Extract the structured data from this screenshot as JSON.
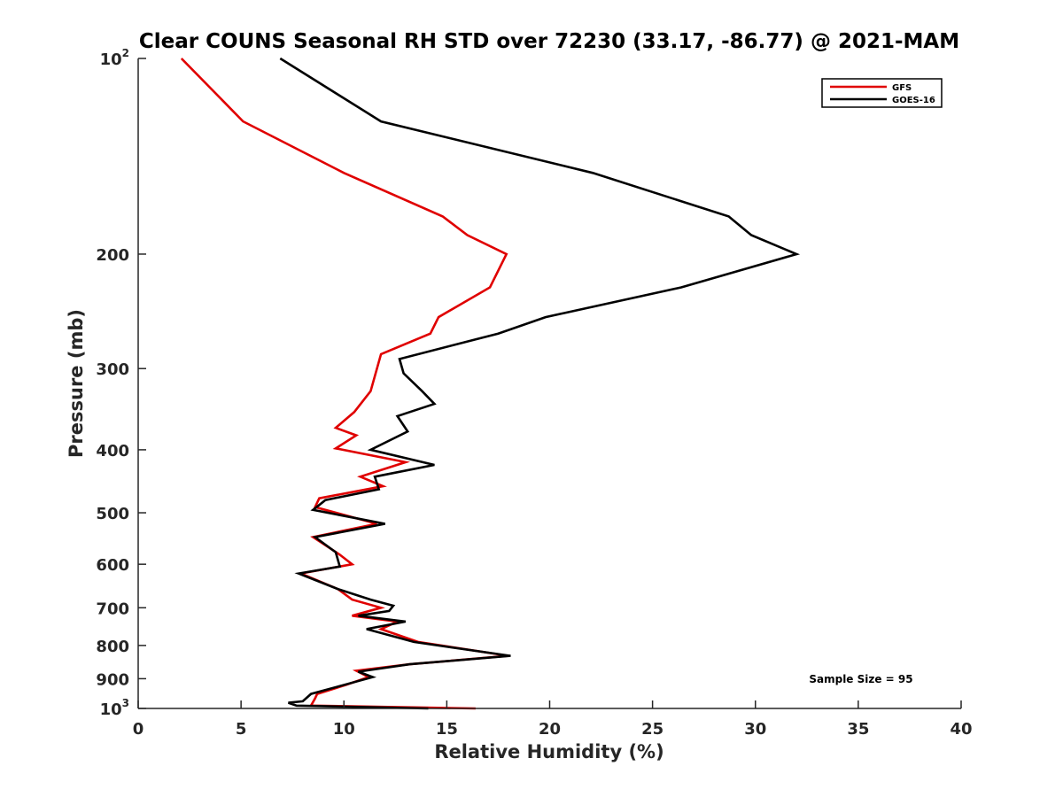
{
  "chart_data": {
    "type": "line",
    "title": "Clear COUNS Seasonal RH STD over 72230 (33.17, -86.77) @ 2021-MAM",
    "xlabel": "Relative Humidity (%)",
    "ylabel": "Pressure (mb)",
    "xlim": [
      0,
      40
    ],
    "ylim": [
      100,
      1000
    ],
    "y_scale": "log",
    "y_reversed": true,
    "x_ticks": [
      0,
      5,
      10,
      15,
      20,
      25,
      30,
      35,
      40
    ],
    "y_ticks": [
      {
        "value": 100,
        "label": "10",
        "sup": "2"
      },
      {
        "value": 200,
        "label": "200"
      },
      {
        "value": 300,
        "label": "300"
      },
      {
        "value": 400,
        "label": "400"
      },
      {
        "value": 500,
        "label": "500"
      },
      {
        "value": 600,
        "label": "600"
      },
      {
        "value": 700,
        "label": "700"
      },
      {
        "value": 800,
        "label": "800"
      },
      {
        "value": 900,
        "label": "900"
      },
      {
        "value": 1000,
        "label": "10",
        "sup": "3"
      }
    ],
    "grid": false,
    "legend_position": "top-right",
    "annotation": "Sample Size = 95",
    "series": [
      {
        "name": "GFS",
        "color": "#e00000",
        "points": [
          [
            2.1,
            100
          ],
          [
            5.1,
            125
          ],
          [
            10.0,
            150
          ],
          [
            14.8,
            175
          ],
          [
            16.0,
            187
          ],
          [
            17.9,
            200
          ],
          [
            17.1,
            225
          ],
          [
            14.6,
            250
          ],
          [
            14.2,
            265
          ],
          [
            11.8,
            285
          ],
          [
            11.3,
            325
          ],
          [
            10.5,
            350
          ],
          [
            9.6,
            370
          ],
          [
            10.6,
            380
          ],
          [
            9.6,
            398
          ],
          [
            13.0,
            418
          ],
          [
            10.8,
            440
          ],
          [
            11.9,
            455
          ],
          [
            8.8,
            475
          ],
          [
            8.6,
            490
          ],
          [
            11.6,
            520
          ],
          [
            8.5,
            545
          ],
          [
            9.8,
            580
          ],
          [
            10.4,
            600
          ],
          [
            7.9,
            620
          ],
          [
            9.7,
            655
          ],
          [
            10.4,
            680
          ],
          [
            11.8,
            700
          ],
          [
            10.4,
            720
          ],
          [
            12.6,
            735
          ],
          [
            11.8,
            755
          ],
          [
            13.6,
            790
          ],
          [
            18.0,
            830
          ],
          [
            13.2,
            855
          ],
          [
            10.6,
            875
          ],
          [
            11.2,
            895
          ],
          [
            10.1,
            920
          ],
          [
            8.7,
            950
          ],
          [
            8.6,
            965
          ],
          [
            8.4,
            990
          ],
          [
            16.4,
            1000
          ]
        ]
      },
      {
        "name": "GOES-16",
        "color": "#000000",
        "points": [
          [
            6.9,
            100
          ],
          [
            11.8,
            125
          ],
          [
            22.1,
            150
          ],
          [
            28.7,
            175
          ],
          [
            29.8,
            187
          ],
          [
            32.0,
            200
          ],
          [
            26.4,
            225
          ],
          [
            19.8,
            250
          ],
          [
            17.5,
            265
          ],
          [
            12.7,
            290
          ],
          [
            12.9,
            305
          ],
          [
            13.8,
            325
          ],
          [
            14.4,
            340
          ],
          [
            12.6,
            355
          ],
          [
            13.1,
            375
          ],
          [
            11.3,
            400
          ],
          [
            14.4,
            422
          ],
          [
            11.5,
            440
          ],
          [
            11.7,
            460
          ],
          [
            9.1,
            478
          ],
          [
            8.5,
            495
          ],
          [
            12.0,
            520
          ],
          [
            8.6,
            545
          ],
          [
            9.6,
            575
          ],
          [
            9.8,
            605
          ],
          [
            7.8,
            620
          ],
          [
            9.7,
            655
          ],
          [
            11.3,
            680
          ],
          [
            12.4,
            695
          ],
          [
            12.2,
            708
          ],
          [
            10.7,
            720
          ],
          [
            13.0,
            735
          ],
          [
            11.1,
            755
          ],
          [
            13.4,
            790
          ],
          [
            18.1,
            830
          ],
          [
            13.2,
            855
          ],
          [
            10.7,
            878
          ],
          [
            11.4,
            895
          ],
          [
            8.4,
            950
          ],
          [
            8.0,
            975
          ],
          [
            7.3,
            980
          ],
          [
            7.7,
            990
          ],
          [
            14.1,
            1000
          ]
        ]
      }
    ]
  }
}
